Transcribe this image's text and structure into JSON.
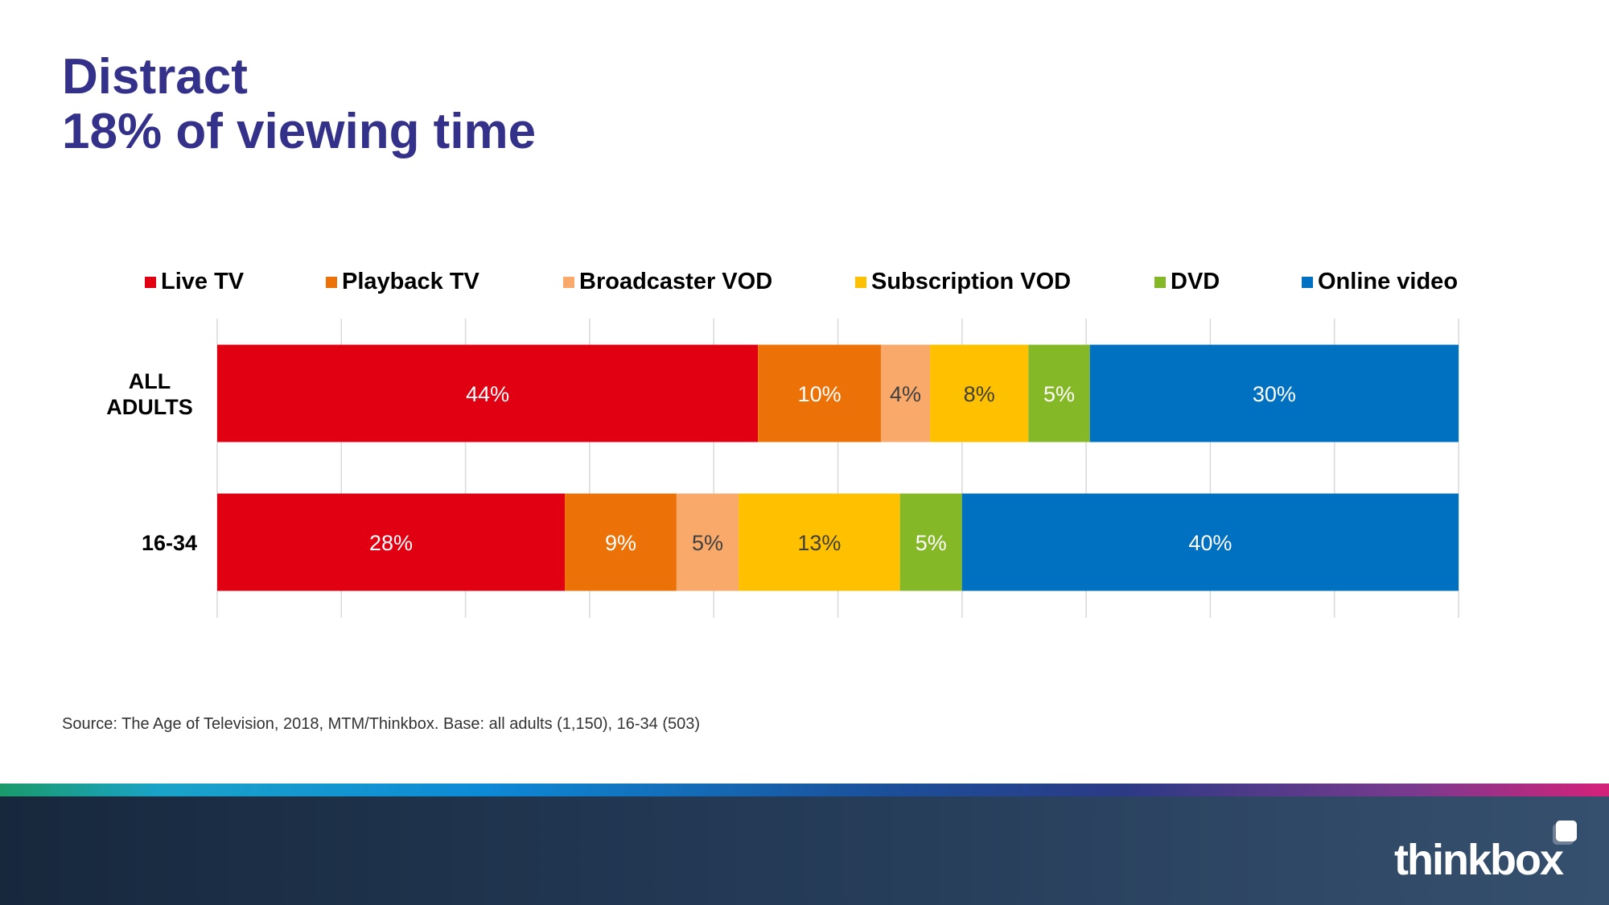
{
  "slide": {
    "title_line1": "Distract",
    "title_line2": "18% of viewing time",
    "source": "Source: The Age of Television, 2018, MTM/Thinkbox.  Base: all adults (1,150), 16-34 (503)",
    "logo": "thinkbox"
  },
  "chart_data": {
    "type": "bar",
    "orientation": "horizontal",
    "stacked": true,
    "percent": true,
    "categories": [
      "ALL ADULTS",
      "16-34"
    ],
    "series": [
      {
        "name": "Live TV",
        "color": "#e00012",
        "values": [
          44,
          28
        ],
        "labels": [
          "44%",
          "28%"
        ],
        "label_color": "#ffffff"
      },
      {
        "name": "Playback TV",
        "color": "#ec7207",
        "values": [
          10,
          9
        ],
        "labels": [
          "10%",
          "9%"
        ],
        "label_color": "#ffffff"
      },
      {
        "name": "Broadcaster VOD",
        "color": "#f9a969",
        "values": [
          4,
          5
        ],
        "labels": [
          "4%",
          "5%"
        ],
        "label_color": "#404040"
      },
      {
        "name": "Subscription VOD",
        "color": "#ffc000",
        "values": [
          8,
          13
        ],
        "labels": [
          "8%",
          "13%"
        ],
        "label_color": "#404040"
      },
      {
        "name": "DVD",
        "color": "#85b827",
        "values": [
          5,
          5
        ],
        "labels": [
          "5%",
          "5%"
        ],
        "label_color": "#ffffff"
      },
      {
        "name": "Online video",
        "color": "#0070c0",
        "values": [
          30,
          40
        ],
        "labels": [
          "30%",
          "40%"
        ],
        "label_color": "#ffffff"
      }
    ],
    "xlim": [
      0,
      100
    ],
    "grid": true,
    "legend": "top"
  }
}
